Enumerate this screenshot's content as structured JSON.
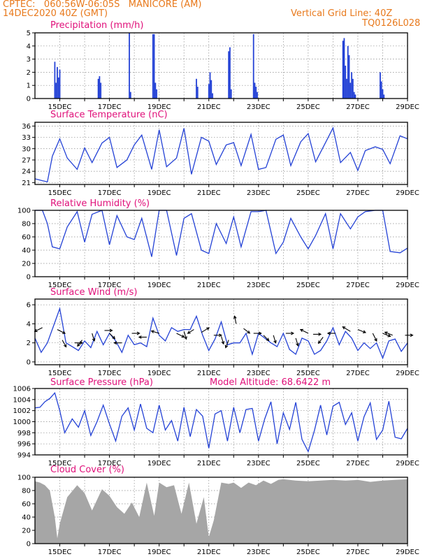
{
  "header": {
    "left1": "CPTEC:   060:56W-06:05S   MANICORE (AM)",
    "left2": "14DEC2020 40Z (GMT)",
    "right1": "Vertical Grid Line: 40Z",
    "right2": "TQ0126L028"
  },
  "colors": {
    "line": "#2442d6",
    "title": "#e0107a",
    "header": "#e8791c",
    "cloud": "#a6a6a6",
    "arrow": "#000000"
  },
  "x_axis": {
    "tick_labels": [
      "15DEC",
      "17DEC",
      "19DEC",
      "21DEC",
      "23DEC",
      "25DEC",
      "27DEC",
      "29DEC"
    ],
    "day_start": 14.0,
    "day_end": 29.0
  },
  "chart_data": [
    {
      "type": "bar",
      "title": "Precipitation (mm/h)",
      "ylim": [
        0,
        5
      ],
      "yticks": [
        0,
        1,
        2,
        3,
        4,
        5
      ],
      "x": [
        14.8,
        14.85,
        14.9,
        14.95,
        15.0,
        16.55,
        16.6,
        16.65,
        17.8,
        17.85,
        18.75,
        18.8,
        18.85,
        18.9,
        20.5,
        20.55,
        21.0,
        21.05,
        21.1,
        21.15,
        21.8,
        21.85,
        21.9,
        22.8,
        22.85,
        22.9,
        22.95,
        26.4,
        26.45,
        26.5,
        26.55,
        26.6,
        26.65,
        26.7,
        26.75,
        26.8,
        26.85,
        26.9,
        27.9,
        27.95,
        28.0,
        28.05
      ],
      "values": [
        2.8,
        1.2,
        2.4,
        1.6,
        2.2,
        1.5,
        1.7,
        1.2,
        5.0,
        0.5,
        4.9,
        4.9,
        1.2,
        0.7,
        1.5,
        0.9,
        1.1,
        2.0,
        1.4,
        0.4,
        3.6,
        3.9,
        0.7,
        4.9,
        1.2,
        0.9,
        0.5,
        4.4,
        4.6,
        2.5,
        1.5,
        4.0,
        3.3,
        1.2,
        2.0,
        1.5,
        0.5,
        0.3,
        2.0,
        1.3,
        0.7,
        0.3
      ]
    },
    {
      "type": "line",
      "title": "Surface Temperature (nC)",
      "ylim": [
        20.5,
        37
      ],
      "yticks": [
        21,
        24,
        27,
        30,
        33,
        36
      ],
      "x": [
        14.0,
        14.3,
        14.5,
        14.7,
        15.0,
        15.3,
        15.7,
        16.0,
        16.3,
        16.7,
        17.0,
        17.3,
        17.7,
        18.0,
        18.3,
        18.7,
        19.0,
        19.3,
        19.7,
        20.0,
        20.3,
        20.7,
        21.0,
        21.3,
        21.7,
        22.0,
        22.3,
        22.7,
        23.0,
        23.3,
        23.7,
        24.0,
        24.3,
        24.7,
        25.0,
        25.3,
        25.7,
        26.0,
        26.3,
        26.7,
        27.0,
        27.3,
        27.7,
        28.0,
        28.3,
        28.7,
        29.0
      ],
      "values": [
        22,
        21.5,
        21.2,
        28,
        32.6,
        27.5,
        24.5,
        30.2,
        26.3,
        31.5,
        33,
        25,
        27,
        31,
        33.6,
        24.5,
        35,
        25.2,
        27.5,
        35.4,
        23.2,
        33,
        32,
        25.8,
        31,
        31.6,
        25.5,
        33.8,
        24.5,
        25,
        32.5,
        33.6,
        25.5,
        31.8,
        34,
        26.5,
        31.6,
        35.5,
        26.3,
        29,
        24.2,
        29.5,
        30.5,
        29.8,
        26,
        33.4,
        32.6
      ]
    },
    {
      "type": "line",
      "title": "Relative Humidity (%)",
      "ylim": [
        0,
        100
      ],
      "yticks": [
        0,
        20,
        40,
        60,
        80,
        100
      ],
      "x": [
        14.0,
        14.3,
        14.5,
        14.7,
        15.0,
        15.3,
        15.7,
        16.0,
        16.3,
        16.7,
        17.0,
        17.3,
        17.7,
        18.0,
        18.3,
        18.7,
        19.0,
        19.3,
        19.7,
        20.0,
        20.3,
        20.7,
        21.0,
        21.3,
        21.7,
        22.0,
        22.3,
        22.7,
        23.0,
        23.3,
        23.7,
        24.0,
        24.3,
        24.7,
        25.0,
        25.3,
        25.7,
        26.0,
        26.3,
        26.7,
        27.0,
        27.3,
        27.7,
        28.0,
        28.3,
        28.7,
        29.0
      ],
      "values": [
        100,
        100,
        80,
        45,
        42,
        75,
        98,
        52,
        94,
        100,
        48,
        92,
        60,
        56,
        88,
        30,
        100,
        100,
        32,
        88,
        95,
        40,
        35,
        80,
        50,
        90,
        45,
        98,
        98,
        100,
        35,
        52,
        88,
        60,
        42,
        62,
        95,
        42,
        95,
        72,
        90,
        98,
        100,
        100,
        38,
        36,
        43
      ]
    },
    {
      "type": "line",
      "title": "Surface Wind (m/s)",
      "ylim": [
        -0.3,
        6.6
      ],
      "yticks": [
        0,
        2,
        4,
        6
      ],
      "x": [
        14.0,
        14.25,
        14.5,
        14.75,
        15.0,
        15.25,
        15.5,
        15.75,
        16.0,
        16.25,
        16.5,
        16.75,
        17.0,
        17.25,
        17.5,
        17.75,
        18.0,
        18.25,
        18.5,
        18.75,
        19.0,
        19.25,
        19.5,
        19.75,
        20.0,
        20.25,
        20.5,
        20.75,
        21.0,
        21.25,
        21.5,
        21.75,
        22.0,
        22.25,
        22.5,
        22.75,
        23.0,
        23.25,
        23.5,
        23.75,
        24.0,
        24.25,
        24.5,
        24.75,
        25.0,
        25.25,
        25.5,
        25.75,
        26.0,
        26.25,
        26.5,
        26.75,
        27.0,
        27.25,
        27.5,
        27.75,
        28.0,
        28.25,
        28.5,
        28.75,
        29.0
      ],
      "values": [
        2.5,
        1.0,
        2.0,
        3.8,
        5.6,
        2.0,
        1.6,
        1.2,
        2.2,
        1.5,
        3.2,
        1.8,
        3.0,
        2.2,
        1.0,
        2.8,
        1.8,
        2.0,
        1.6,
        4.6,
        2.8,
        2.2,
        3.6,
        3.2,
        3.4,
        3.4,
        4.8,
        2.8,
        1.2,
        2.4,
        4.2,
        1.8,
        2.0,
        2.0,
        3.0,
        0.8,
        3.0,
        2.5,
        2.0,
        1.6,
        3.0,
        1.3,
        0.8,
        2.5,
        2.2,
        0.8,
        1.2,
        2.2,
        3.6,
        1.8,
        3.2,
        2.5,
        1.2,
        2.0,
        1.4,
        2.0,
        0.4,
        2.2,
        2.4,
        1.1,
        2.0
      ],
      "arrows": [
        [
          14.3,
          3.6,
          -1,
          -0.5
        ],
        [
          14.9,
          3.4,
          1,
          -0.5
        ],
        [
          15.1,
          2.3,
          0.5,
          -0.9
        ],
        [
          15.6,
          2.0,
          1,
          0
        ],
        [
          15.9,
          2.3,
          -0.6,
          -0.8
        ],
        [
          16.3,
          3.0,
          0.3,
          -1
        ],
        [
          16.8,
          3.3,
          1,
          0
        ],
        [
          17.0,
          3.0,
          0.7,
          -0.7
        ],
        [
          17.5,
          2.0,
          -1,
          0
        ],
        [
          17.9,
          3.0,
          1,
          0
        ],
        [
          18.5,
          2.6,
          -1,
          0
        ],
        [
          19.0,
          3.0,
          -1,
          0.3
        ],
        [
          19.7,
          3.0,
          1,
          -0.5
        ],
        [
          20.0,
          3.2,
          0.3,
          -1
        ],
        [
          20.4,
          3.4,
          -0.8,
          -0.5
        ],
        [
          20.7,
          3.1,
          1,
          0.6
        ],
        [
          21.2,
          2.8,
          1,
          0
        ],
        [
          21.5,
          2.7,
          0.3,
          -1
        ],
        [
          21.8,
          2.3,
          -0.4,
          -1
        ],
        [
          22.1,
          4.0,
          -0.2,
          1
        ],
        [
          22.4,
          3.5,
          0.8,
          -0.6
        ],
        [
          22.8,
          3.0,
          1,
          0
        ],
        [
          23.2,
          2.8,
          0.7,
          -0.7
        ],
        [
          23.6,
          2.8,
          0.3,
          -1
        ],
        [
          24.1,
          3.0,
          1,
          0
        ],
        [
          24.5,
          2.5,
          0.3,
          -1
        ],
        [
          25.0,
          3.0,
          -1,
          0.5
        ],
        [
          25.2,
          2.9,
          1,
          0
        ],
        [
          25.6,
          2.6,
          -0.6,
          -0.8
        ],
        [
          26.1,
          3.0,
          -1,
          0
        ],
        [
          26.7,
          3.2,
          -1,
          0.6
        ],
        [
          27.0,
          3.4,
          1,
          -0.4
        ],
        [
          27.6,
          3.0,
          0.5,
          -1
        ],
        [
          28.0,
          3.0,
          1,
          -0.4
        ],
        [
          28.4,
          2.8,
          -1,
          0.4
        ],
        [
          28.9,
          2.8,
          1,
          0
        ]
      ]
    },
    {
      "type": "line",
      "title": "Surface Pressure (hPa)",
      "annotation": "Model Altitude: 68.6422 m",
      "ylim": [
        994,
        1006
      ],
      "yticks": [
        994,
        996,
        998,
        1000,
        1002,
        1004,
        1006
      ],
      "x": [
        14.0,
        14.2,
        14.4,
        14.6,
        14.8,
        15.0,
        15.2,
        15.5,
        15.75,
        16.0,
        16.25,
        16.5,
        16.75,
        17.0,
        17.25,
        17.5,
        17.75,
        18.0,
        18.25,
        18.5,
        18.75,
        19.0,
        19.25,
        19.5,
        19.75,
        20.0,
        20.25,
        20.5,
        20.75,
        21.0,
        21.25,
        21.5,
        21.75,
        22.0,
        22.25,
        22.5,
        22.75,
        23.0,
        23.25,
        23.5,
        23.75,
        24.0,
        24.25,
        24.5,
        24.75,
        25.0,
        25.25,
        25.5,
        25.75,
        26.0,
        26.25,
        26.5,
        26.75,
        27.0,
        27.25,
        27.5,
        27.75,
        28.0,
        28.25,
        28.5,
        28.75,
        29.0
      ],
      "values": [
        1002.5,
        1002.6,
        1003.6,
        1004.2,
        1005.2,
        1002,
        998,
        1000.5,
        999,
        1002,
        997.5,
        1000,
        1003,
        999.6,
        996.5,
        1001,
        1002.5,
        998.5,
        1003.2,
        998.8,
        998,
        1003,
        998.5,
        1000.2,
        996.5,
        1002.6,
        997.3,
        1002.2,
        1001,
        995.2,
        1001.4,
        1002,
        996.5,
        1002.6,
        998,
        1002.2,
        1002.4,
        996.5,
        1000.5,
        1003.6,
        996,
        1001.6,
        998.6,
        1003.5,
        996.8,
        994.6,
        998.4,
        1003,
        997.6,
        1002.8,
        1003.5,
        999.5,
        1001.6,
        996.5,
        1000.9,
        1003.4,
        996.8,
        998.5,
        1003.7,
        997.2,
        996.9,
        998.8
      ]
    },
    {
      "type": "area",
      "title": "Cloud Cover (%)",
      "ylim": [
        0,
        100
      ],
      "yticks": [
        0,
        20,
        40,
        60,
        80,
        100
      ],
      "x": [
        14.0,
        14.2,
        14.4,
        14.6,
        14.8,
        14.9,
        15.0,
        15.3,
        15.7,
        16.0,
        16.3,
        16.7,
        17.0,
        17.3,
        17.6,
        17.9,
        18.2,
        18.5,
        18.8,
        19.0,
        19.3,
        19.6,
        19.9,
        20.2,
        20.5,
        20.8,
        21.0,
        21.2,
        21.5,
        21.8,
        22.0,
        22.3,
        22.6,
        22.9,
        23.2,
        23.5,
        23.8,
        24.0,
        24.5,
        25.0,
        25.5,
        26.0,
        26.5,
        27.0,
        27.5,
        28.0,
        28.5,
        29.0
      ],
      "values": [
        94,
        92,
        88,
        80,
        40,
        8,
        30,
        70,
        88,
        76,
        50,
        82,
        72,
        55,
        45,
        62,
        40,
        92,
        42,
        92,
        85,
        88,
        45,
        92,
        30,
        70,
        10,
        35,
        92,
        90,
        92,
        84,
        92,
        88,
        95,
        90,
        96,
        97,
        95,
        94,
        95,
        96,
        95,
        96,
        93,
        95,
        96,
        97
      ]
    }
  ]
}
